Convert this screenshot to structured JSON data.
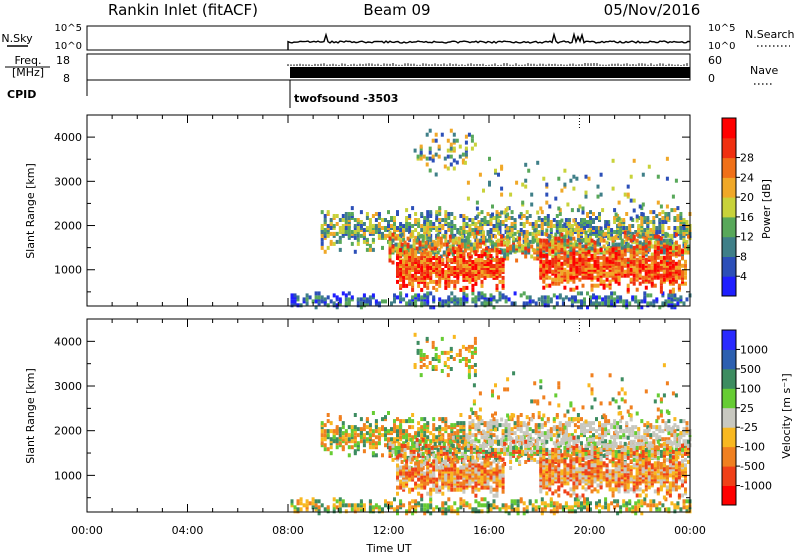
{
  "header": {
    "station": "Rankin Inlet (fitACF)",
    "beam": "Beam 09",
    "date": "05/Nov/2016"
  },
  "summary": {
    "nsky_label": "N.Sky",
    "nsky_ticks": [
      "10^5",
      "10^0"
    ],
    "nsearch_label": "N.Search",
    "freq_label_line1": "Freq.",
    "freq_label_line2": "[MHz]",
    "freq_ticks": [
      "18",
      "8"
    ],
    "nave_label": "Nave",
    "nave_ticks": [
      "60",
      "0"
    ],
    "nsearch_ticks": [
      "10^5",
      "10^0"
    ],
    "cpid_label": "CPID",
    "cpid_value": "twofsound -3503"
  },
  "chart_data": [
    {
      "type": "heatmap",
      "name": "power",
      "ylabel": "Slant Range [km]",
      "yticks": [
        "1000",
        "2000",
        "3000",
        "4000"
      ],
      "ylim": [
        180,
        4500
      ],
      "xlim": [
        0,
        24
      ],
      "data_start_hour": 8,
      "colorbar_label": "Power [dB]",
      "colorbar_ticks": [
        "4",
        "8",
        "12",
        "16",
        "20",
        "24",
        "28"
      ],
      "colorbar_colors": [
        "#1f1fff",
        "#2c4fb8",
        "#3f7f88",
        "#58a85a",
        "#c8d23a",
        "#f0a828",
        "#f07018",
        "#f03010",
        "#ff0000"
      ]
    },
    {
      "type": "heatmap",
      "name": "velocity",
      "ylabel": "Slant Range [km]",
      "yticks": [
        "1000",
        "2000",
        "3000",
        "4000"
      ],
      "ylim": [
        180,
        4500
      ],
      "xlim": [
        0,
        24
      ],
      "data_start_hour": 8,
      "xlabel": "Time UT",
      "xticks": [
        "00:00",
        "04:00",
        "08:00",
        "12:00",
        "16:00",
        "20:00",
        "00:00"
      ],
      "colorbar_label": "Velocity [m s⁻¹]",
      "colorbar_ticks": [
        "1000",
        "500",
        "100",
        "25",
        "-25",
        "-100",
        "-500",
        "-1000"
      ],
      "colorbar_colors": [
        "#2a2aff",
        "#2c5fb0",
        "#3d8c60",
        "#66cc33",
        "#c8c8c0",
        "#f8b820",
        "#f08020",
        "#f04018",
        "#ff0000"
      ]
    }
  ]
}
